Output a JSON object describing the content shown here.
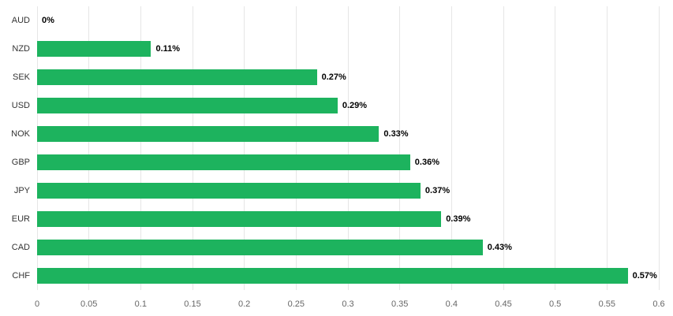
{
  "chart_data": {
    "type": "bar",
    "orientation": "horizontal",
    "title": "",
    "xlabel": "",
    "ylabel": "",
    "categories": [
      "AUD",
      "NZD",
      "SEK",
      "USD",
      "NOK",
      "GBP",
      "JPY",
      "EUR",
      "CAD",
      "CHF"
    ],
    "values": [
      0,
      0.11,
      0.27,
      0.29,
      0.33,
      0.36,
      0.37,
      0.39,
      0.43,
      0.57
    ],
    "value_labels": [
      "0%",
      "0.11%",
      "0.27%",
      "0.29%",
      "0.33%",
      "0.36%",
      "0.37%",
      "0.39%",
      "0.43%",
      "0.57%"
    ],
    "xlim": [
      0,
      0.6
    ],
    "x_ticks": [
      0,
      0.05,
      0.1,
      0.15,
      0.2,
      0.25,
      0.3,
      0.35,
      0.4,
      0.45,
      0.5,
      0.55,
      0.6
    ],
    "x_tick_labels": [
      "0",
      "0.05",
      "0.1",
      "0.15",
      "0.2",
      "0.25",
      "0.3",
      "0.35",
      "0.4",
      "0.45",
      "0.5",
      "0.55",
      "0.6"
    ],
    "grid": true,
    "legend": false,
    "colors": {
      "bar": "#1db35e",
      "gridline": "#e6e6e6",
      "category_label": "#333333",
      "tick_label": "#666666",
      "value_label": "#000000",
      "background": "#ffffff"
    }
  }
}
